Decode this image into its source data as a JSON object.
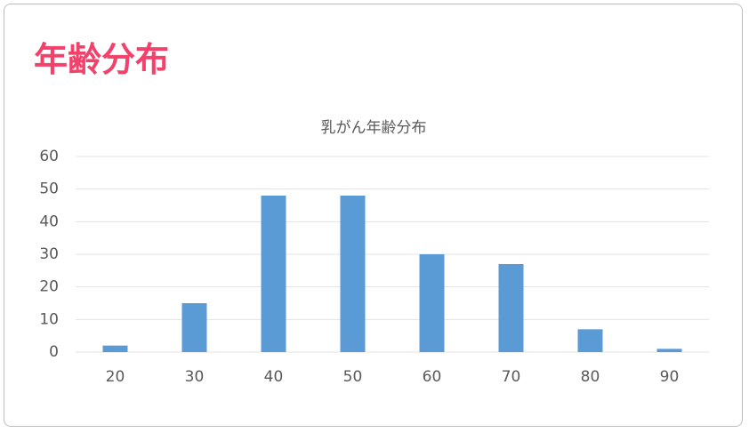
{
  "heading": "年齢分布",
  "chart_data": {
    "type": "bar",
    "title": "乳がん年齢分布",
    "categories": [
      "20",
      "30",
      "40",
      "50",
      "60",
      "70",
      "80",
      "90"
    ],
    "values": [
      2,
      15,
      48,
      48,
      30,
      27,
      7,
      1
    ],
    "color": "#5b9bd5",
    "ylim": [
      0,
      60
    ],
    "yticks": [
      0,
      10,
      20,
      30,
      40,
      50,
      60
    ],
    "grid": true
  }
}
